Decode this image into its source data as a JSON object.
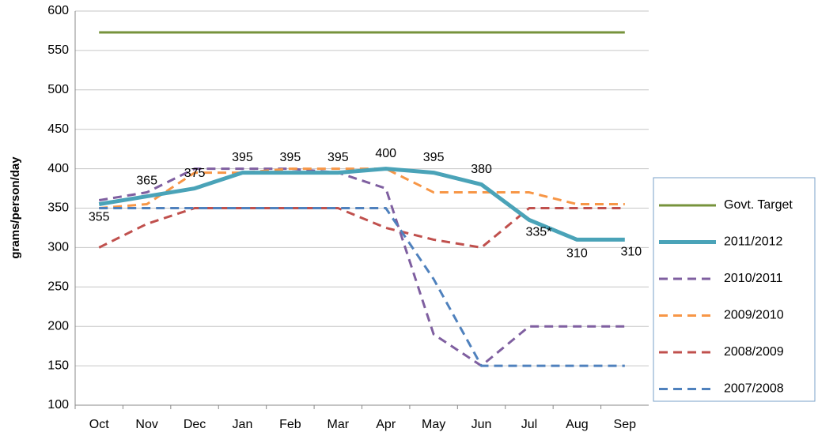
{
  "chart_data": {
    "type": "line",
    "y_label": "grams/person/day",
    "categories": [
      "Oct",
      "Nov",
      "Dec",
      "Jan",
      "Feb",
      "Mar",
      "Apr",
      "May",
      "Jun",
      "Jul",
      "Aug",
      "Sep"
    ],
    "ylim": [
      100,
      600
    ],
    "yticks": [
      100,
      150,
      200,
      250,
      300,
      350,
      400,
      450,
      500,
      550,
      600
    ],
    "grid": true,
    "legend": "right",
    "series": [
      {
        "name": "Govt. Target",
        "color": "#77933c",
        "style": "solid",
        "values": [
          573,
          573,
          573,
          573,
          573,
          573,
          573,
          573,
          573,
          573,
          573,
          573
        ]
      },
      {
        "name": "2011/2012",
        "color": "#4aa3b8",
        "style": "thick",
        "values": [
          355,
          365,
          375,
          395,
          395,
          395,
          400,
          395,
          380,
          335,
          310,
          310
        ],
        "value_labels": [
          "355",
          "365",
          "375",
          "395",
          "395",
          "395",
          "400",
          "395",
          "380",
          "335*",
          "310",
          "310"
        ]
      },
      {
        "name": "2010/2011",
        "color": "#7f5fa0",
        "style": "dashed",
        "values": [
          360,
          370,
          400,
          400,
          400,
          395,
          375,
          190,
          150,
          200,
          200,
          200
        ]
      },
      {
        "name": "2009/2010",
        "color": "#f79646",
        "style": "dashed",
        "values": [
          350,
          355,
          395,
          395,
          400,
          400,
          400,
          370,
          370,
          370,
          355,
          355
        ]
      },
      {
        "name": "2008/2009",
        "color": "#c0504d",
        "style": "dashed",
        "values": [
          300,
          330,
          350,
          350,
          350,
          350,
          325,
          310,
          300,
          350,
          350,
          350
        ]
      },
      {
        "name": "2007/2008",
        "color": "#4f81bd",
        "style": "dashed",
        "values": [
          350,
          350,
          350,
          350,
          350,
          350,
          350,
          260,
          150,
          150,
          150,
          150
        ]
      }
    ]
  }
}
